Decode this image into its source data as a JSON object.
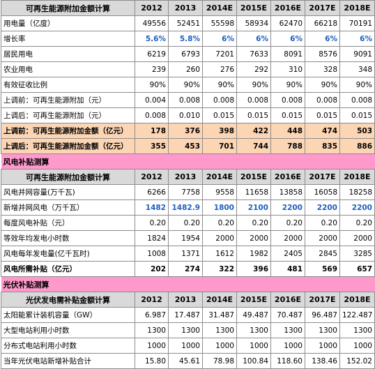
{
  "colors": {
    "header_bg": "#d9d9d9",
    "section_bg": "#ff99cc",
    "highlight_bg": "#fcd5b4",
    "blue_text": "#1f5fbf"
  },
  "table1": {
    "title": "可再生能源附加金额计算",
    "years": [
      "2012",
      "2013",
      "2014E",
      "2015E",
      "2016E",
      "2017E",
      "2018E"
    ],
    "rows": [
      {
        "label": "用电量（亿度）",
        "values": [
          "49556",
          "52451",
          "55598",
          "58934",
          "62470",
          "66218",
          "70191"
        ]
      },
      {
        "label": "增长率",
        "values": [
          "5.6%",
          "5.8%",
          "6%",
          "6%",
          "6%",
          "6%",
          "6%"
        ]
      },
      {
        "label": "居民用电",
        "values": [
          "6219",
          "6793",
          "7201",
          "7633",
          "8091",
          "8576",
          "9091"
        ]
      },
      {
        "label": "农业用电",
        "values": [
          "239",
          "260",
          "276",
          "292",
          "310",
          "328",
          "348"
        ]
      },
      {
        "label": "有效征收比例",
        "values": [
          "90%",
          "90%",
          "90%",
          "90%",
          "90%",
          "90%",
          "90%"
        ]
      },
      {
        "label": "上调前：可再生能源附加（元）",
        "values": [
          "0.004",
          "0.008",
          "0.008",
          "0.008",
          "0.008",
          "0.008",
          "0.008"
        ]
      },
      {
        "label": "上调后：可再生能源附加（元）",
        "values": [
          "0.008",
          "0.010",
          "0.015",
          "0.015",
          "0.015",
          "0.015",
          "0.015"
        ]
      },
      {
        "label": "上调前：可再生能源附加金额（亿元）",
        "values": [
          "178",
          "376",
          "398",
          "422",
          "448",
          "474",
          "503"
        ]
      },
      {
        "label": "上调后：可再生能源附加金额（亿元）",
        "values": [
          "355",
          "453",
          "701",
          "744",
          "788",
          "835",
          "886"
        ]
      }
    ]
  },
  "section_wind": "风电补贴测算",
  "table2": {
    "title": "可再生能源附加金额计算",
    "years": [
      "2012",
      "2013",
      "2014E",
      "2015E",
      "2016E",
      "2017E",
      "2018E"
    ],
    "rows": [
      {
        "label": "风电并网容量(万千瓦)",
        "values": [
          "6266",
          "7758",
          "9558",
          "11658",
          "13858",
          "16058",
          "18258"
        ]
      },
      {
        "label": "新增并网风电（万千瓦）",
        "values": [
          "1482",
          "1482.9",
          "1800",
          "2100",
          "2200",
          "2200",
          "2200"
        ]
      },
      {
        "label": "每度风电补贴（元）",
        "values": [
          "0.20",
          "0.20",
          "0.20",
          "0.20",
          "0.20",
          "0.20",
          "0.20"
        ]
      },
      {
        "label": "等效年均发电小时数",
        "values": [
          "1824",
          "1954",
          "2000",
          "2000",
          "2000",
          "2000",
          "2000"
        ]
      },
      {
        "label": "风电每年发电量(亿千瓦时)",
        "values": [
          "1008",
          "1371",
          "1612",
          "1982",
          "2405",
          "2845",
          "3285"
        ]
      },
      {
        "label": "风电所需补贴（亿元）",
        "values": [
          "202",
          "274",
          "322",
          "396",
          "481",
          "569",
          "657"
        ]
      }
    ]
  },
  "section_solar": "光伏补贴测算",
  "table3": {
    "title": "光伏发电需补贴金额计算",
    "years": [
      "2012",
      "2013",
      "2014E",
      "2015E",
      "2016E",
      "2017E",
      "2018E"
    ],
    "rows": [
      {
        "label": "太阳能累计装机容量（GW）",
        "values": [
          "6.987",
          "17.487",
          "31.487",
          "49.487",
          "70.487",
          "96.487",
          "122.487"
        ]
      },
      {
        "label": "大型电站利用小时数",
        "values": [
          "1300",
          "1300",
          "1300",
          "1300",
          "1300",
          "1300",
          "1300"
        ]
      },
      {
        "label": "分布式电站利用小时数",
        "values": [
          "1000",
          "1000",
          "1000",
          "1000",
          "1000",
          "1000",
          "1000"
        ]
      },
      {
        "label": "当年光伏电站新增补贴合计",
        "values": [
          "15.80",
          "45.61",
          "78.98",
          "100.84",
          "118.60",
          "138.46",
          "152.02"
        ]
      }
    ]
  }
}
